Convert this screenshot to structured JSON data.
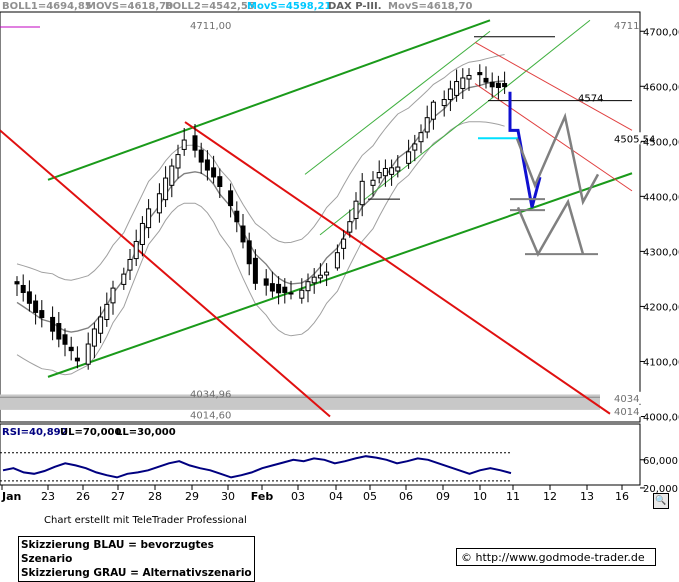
{
  "chart_data": {
    "type": "candlestick",
    "instrument": "DAX P-III.",
    "header": {
      "boll1": "BOLL1=4694,85",
      "movs1": "MOVS=4618,70",
      "boll2": "BOLL2=4542,55",
      "movs2": "MovS=4598,21",
      "title": "DAX P-III.",
      "movs3": "MovS=4618,70"
    },
    "ylim": [
      3990,
      4735
    ],
    "y_ticks": [
      {
        "value": 4000,
        "label": "4000,00"
      },
      {
        "value": 4100,
        "label": "4100,00"
      },
      {
        "value": 4200,
        "label": "4200,00"
      },
      {
        "value": 4300,
        "label": "4300,00"
      },
      {
        "value": 4400,
        "label": "4400,00"
      },
      {
        "value": 4500,
        "label": "4500,00"
      },
      {
        "value": 4600,
        "label": "4600,00"
      },
      {
        "value": 4700,
        "label": "4700,00"
      }
    ],
    "x_ticks": [
      "Jan",
      "23",
      "26",
      "27",
      "28",
      "29",
      "30",
      "Feb",
      "03",
      "04",
      "05",
      "06",
      "09",
      "10",
      "11",
      "12",
      "13",
      "16"
    ],
    "price_labels": [
      {
        "value": 4711,
        "label": "4711,00",
        "side": "left"
      },
      {
        "value": 4711,
        "label": "4711",
        "side": "right"
      },
      {
        "value": 4574,
        "label": "4574",
        "side": "left"
      },
      {
        "value": 4505.54,
        "label": "4505,54",
        "side": "right"
      },
      {
        "value": 4034.96,
        "label": "4034,96",
        "side": "left"
      },
      {
        "value": 4014.6,
        "label": "4014,60",
        "side": "left"
      },
      {
        "value": 4034,
        "label": "4034",
        "side": "right"
      },
      {
        "value": 4014,
        "label": "4014",
        "side": "right"
      }
    ],
    "sessions": [
      {
        "day": "22",
        "open": 4245,
        "close": 4185,
        "low": 4160,
        "high": 4320
      },
      {
        "day": "23",
        "open": 4180,
        "close": 4095,
        "low": 4065,
        "high": 4200
      },
      {
        "day": "26",
        "open": 4095,
        "close": 4240,
        "low": 4085,
        "high": 4275
      },
      {
        "day": "27",
        "open": 4240,
        "close": 4370,
        "low": 4230,
        "high": 4395
      },
      {
        "day": "28",
        "open": 4370,
        "close": 4510,
        "low": 4350,
        "high": 4530
      },
      {
        "day": "29",
        "open": 4510,
        "close": 4410,
        "low": 4380,
        "high": 4535
      },
      {
        "day": "30",
        "open": 4410,
        "close": 4250,
        "low": 4230,
        "high": 4440
      },
      {
        "day": "02",
        "open": 4250,
        "close": 4215,
        "low": 4195,
        "high": 4285
      },
      {
        "day": "03",
        "open": 4215,
        "close": 4270,
        "low": 4205,
        "high": 4300
      },
      {
        "day": "04",
        "open": 4270,
        "close": 4420,
        "low": 4265,
        "high": 4445
      },
      {
        "day": "05",
        "open": 4420,
        "close": 4460,
        "low": 4390,
        "high": 4490
      },
      {
        "day": "06",
        "open": 4460,
        "close": 4565,
        "low": 4395,
        "high": 4575
      },
      {
        "day": "09",
        "open": 4565,
        "close": 4625,
        "low": 4545,
        "high": 4680
      },
      {
        "day": "10",
        "open": 4625,
        "close": 4595,
        "low": 4570,
        "high": 4711
      }
    ],
    "scenario_preferred": {
      "color": "#1010d0",
      "label": "Skizzierung BLAU = bevorzugtes Szenario",
      "x": [
        "10",
        "11",
        "12"
      ],
      "y": [
        4550,
        4380,
        4435
      ]
    },
    "scenario_alternative": {
      "color": "#808080",
      "label": "Skizzierung GRAU = Alternativszenario",
      "y_top_path": [
        4505,
        4420,
        4545,
        4390,
        4440
      ],
      "y_bottom_path": [
        4380,
        4295,
        4390,
        4295
      ]
    },
    "rsi": {
      "header": {
        "rsi": "RSI=40,892",
        "ul": "UL=70,000",
        "ll": "LL=30,000"
      },
      "ylim": [
        0,
        100
      ],
      "upper_level": 70,
      "lower_level": 30,
      "y_ticks": [
        {
          "value": 60,
          "label": "60,000"
        },
        {
          "value": 20,
          "label": "20,000"
        }
      ],
      "values": [
        45,
        48,
        42,
        40,
        44,
        50,
        55,
        52,
        48,
        42,
        38,
        35,
        40,
        42,
        45,
        50,
        55,
        58,
        52,
        48,
        45,
        40,
        35,
        38,
        42,
        48,
        52,
        56,
        60,
        58,
        62,
        60,
        55,
        58,
        62,
        65,
        63,
        60,
        55,
        58,
        62,
        60,
        55,
        50,
        45,
        40,
        45,
        48,
        45,
        41
      ]
    }
  },
  "footer": {
    "credit": "Chart erstellt mit TeleTrader Professional",
    "legend_blue": "Skizzierung BLAU = bevorzugtes Szenario",
    "legend_gray": "Skizzierung GRAU = Alternativszenario",
    "url": "© http://www.godmode-trader.de",
    "scroll_icon": "magnifier-icon"
  },
  "colors": {
    "green_channel": "#1a9a1a",
    "red_channel": "#e01010",
    "candle": "#000000",
    "band": "#a0a0a0",
    "ma": "#808080",
    "rsi_line": "#000080"
  }
}
